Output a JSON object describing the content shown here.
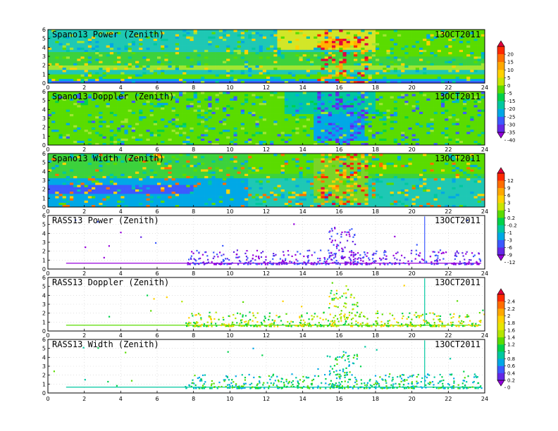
{
  "date_label": "13OCT2011",
  "chart_data": [
    {
      "type": "heatmap",
      "title": "Spano13 Power (Zenith)",
      "x_ticks": [
        0,
        2,
        4,
        6,
        8,
        10,
        12,
        14,
        16,
        18,
        20,
        22,
        24
      ],
      "y_ticks": [
        0,
        1,
        2,
        3,
        4,
        5,
        6
      ],
      "xlim": [
        0,
        24
      ],
      "ylim": [
        0,
        6
      ],
      "colorbar": "cb1"
    },
    {
      "type": "heatmap",
      "title": "Spano13 Doppler (Zenith)",
      "x_ticks": [
        0,
        2,
        4,
        6,
        8,
        10,
        12,
        14,
        16,
        18,
        20,
        22,
        24
      ],
      "y_ticks": [
        0,
        1,
        2,
        3,
        4,
        5,
        6
      ],
      "xlim": [
        0,
        24
      ],
      "ylim": [
        0,
        6
      ],
      "colorbar": "cb1"
    },
    {
      "type": "heatmap",
      "title": "Spano13 Width (Zenith)",
      "x_ticks": [
        0,
        2,
        4,
        6,
        8,
        10,
        12,
        14,
        16,
        18,
        20,
        22,
        24
      ],
      "y_ticks": [
        0,
        1,
        2,
        3,
        4,
        5,
        6
      ],
      "xlim": [
        0,
        24
      ],
      "ylim": [
        0,
        6
      ],
      "colorbar": "cb2"
    },
    {
      "type": "scatter",
      "title": "RASS13 Power (Zenith)",
      "x_ticks": [
        0,
        2,
        4,
        6,
        8,
        10,
        12,
        14,
        16,
        18,
        20,
        22,
        24
      ],
      "y_ticks": [
        0,
        1,
        2,
        3,
        4,
        5,
        6
      ],
      "xlim": [
        0,
        24
      ],
      "ylim": [
        0,
        6
      ],
      "colorbar": "cb2"
    },
    {
      "type": "scatter",
      "title": "RASS13 Doppler (Zenith)",
      "x_ticks": [
        0,
        2,
        4,
        6,
        8,
        10,
        12,
        14,
        16,
        18,
        20,
        22,
        24
      ],
      "y_ticks": [
        0,
        1,
        2,
        3,
        4,
        5,
        6
      ],
      "xlim": [
        0,
        24
      ],
      "ylim": [
        0,
        6
      ],
      "colorbar": "cb3"
    },
    {
      "type": "scatter",
      "title": "RASS13 Width (Zenith)",
      "x_ticks": [
        0,
        2,
        4,
        6,
        8,
        10,
        12,
        14,
        16,
        18,
        20,
        22,
        24
      ],
      "y_ticks": [
        0,
        1,
        2,
        3,
        4,
        5,
        6
      ],
      "xlim": [
        0,
        24
      ],
      "ylim": [
        0,
        6
      ],
      "colorbar": "cb3"
    }
  ],
  "colorbars": {
    "cb1": {
      "labels": [
        "20",
        "15",
        "10",
        "5",
        "0",
        "-5",
        "-15",
        "-20",
        "-25",
        "-30",
        "-35",
        "-40"
      ],
      "colors": [
        "#e0003c",
        "#ff2a00",
        "#ff6e00",
        "#ffa800",
        "#ffd200",
        "#c8e600",
        "#5adc00",
        "#00d24a",
        "#00c8a0",
        "#00a8e6",
        "#3c5aff",
        "#6428e6",
        "#9600dc"
      ]
    },
    "cb2": {
      "labels": [
        "12",
        "9",
        "6",
        "3",
        "1",
        "0.2",
        "-0.2",
        "-1",
        "-3",
        "-6",
        "-9",
        "-12"
      ],
      "colors": [
        "#e0003c",
        "#ff2a00",
        "#ff6e00",
        "#ffa800",
        "#ffd200",
        "#c8e600",
        "#5adc00",
        "#00d24a",
        "#00c8a0",
        "#00a8e6",
        "#3c5aff",
        "#6428e6",
        "#9600dc"
      ]
    },
    "cb3": {
      "labels": [
        "2.4",
        "2.2",
        "2",
        "1.8",
        "1.6",
        "1.4",
        "1.2",
        "1",
        "0.8",
        "0.6",
        "0.4",
        "0.2",
        "0"
      ],
      "colors": [
        "#e0003c",
        "#ff2a00",
        "#ff6e00",
        "#ffa800",
        "#ffd200",
        "#e6e600",
        "#b4e600",
        "#5adc00",
        "#00d24a",
        "#00c8a0",
        "#00a8e6",
        "#3c5aff",
        "#6428e6",
        "#9600dc"
      ]
    }
  }
}
